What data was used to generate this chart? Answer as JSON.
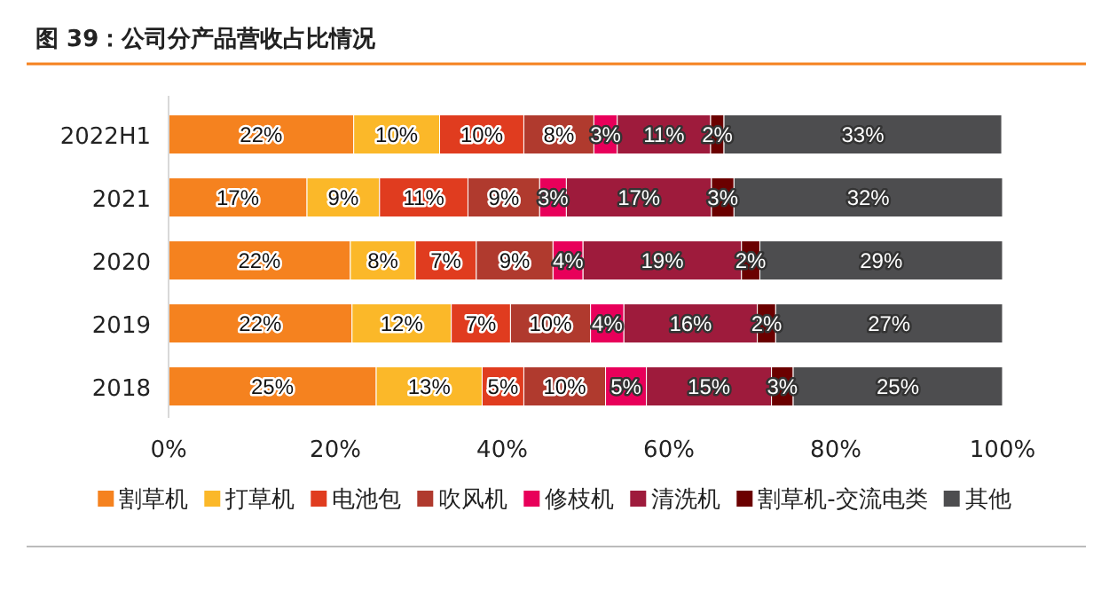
{
  "chart_data": {
    "type": "bar",
    "orientation": "horizontal",
    "stacked": true,
    "title": "图 39：公司分产品营收占比情况",
    "categories": [
      "2022H1",
      "2021",
      "2020",
      "2019",
      "2018"
    ],
    "series": [
      {
        "name": "割草机",
        "color": "#f5821f",
        "values": [
          22.2,
          16.6,
          21.8,
          22.0,
          24.9
        ],
        "value_labels": [
          "22%",
          "17%",
          "22%",
          "22%",
          "25%"
        ]
      },
      {
        "name": "打草机",
        "color": "#fbb829",
        "values": [
          10.3,
          8.7,
          7.8,
          11.9,
          12.7
        ],
        "value_labels": [
          "10%",
          "9%",
          "8%",
          "12%",
          "13%"
        ]
      },
      {
        "name": "电池包",
        "color": "#e03c1f",
        "values": [
          10.1,
          10.6,
          7.3,
          7.1,
          5.0
        ],
        "value_labels": [
          "10%",
          "11%",
          "7%",
          "7%",
          "5%"
        ]
      },
      {
        "name": "吹风机",
        "color": "#b03a2e",
        "values": [
          8.4,
          8.6,
          9.2,
          9.6,
          9.8
        ],
        "value_labels": [
          "8%",
          "9%",
          "9%",
          "10%",
          "10%"
        ]
      },
      {
        "name": "修枝机",
        "color": "#e8005a",
        "values": [
          2.8,
          3.2,
          3.6,
          4.0,
          4.9
        ],
        "value_labels": [
          "3%",
          "3%",
          "4%",
          "4%",
          "5%"
        ]
      },
      {
        "name": "清洗机",
        "color": "#9e1b3c",
        "values": [
          11.2,
          17.4,
          19.0,
          16.0,
          15.0
        ],
        "value_labels": [
          "11%",
          "17%",
          "19%",
          "16%",
          "15%"
        ]
      },
      {
        "name": "割草机-交流电类",
        "color": "#6b0000",
        "values": [
          1.6,
          2.7,
          2.2,
          2.2,
          2.6
        ],
        "value_labels": [
          "2%",
          "3%",
          "2%",
          "2%",
          "3%"
        ]
      },
      {
        "name": "其他",
        "color": "#4d4d4f",
        "values": [
          33.3,
          32.2,
          29.1,
          27.2,
          25.1
        ],
        "value_labels": [
          "33%",
          "32%",
          "29%",
          "27%",
          "25%"
        ]
      }
    ],
    "xlim": [
      0,
      100
    ],
    "xticks": [
      {
        "value": 0,
        "label": "0%"
      },
      {
        "value": 20,
        "label": "20%"
      },
      {
        "value": 40,
        "label": "40%"
      },
      {
        "value": 60,
        "label": "60%"
      },
      {
        "value": 80,
        "label": "80%"
      },
      {
        "value": 100,
        "label": "100%"
      }
    ],
    "grid": false,
    "legend": "bottom"
  }
}
